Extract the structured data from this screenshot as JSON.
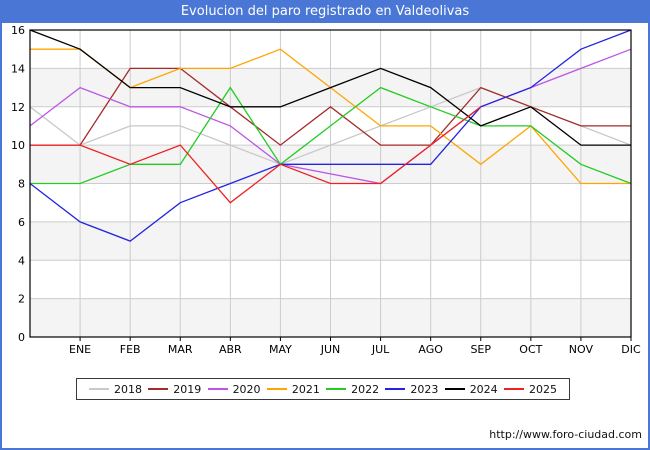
{
  "title": "Evolucion del paro registrado en Valdeolivas",
  "footer": {
    "url": "http://www.foro-ciudad.com"
  },
  "colors": {
    "titlebar_bg": "#4a77d6",
    "titlebar_text": "#ffffff",
    "frame_border": "#4a77d6",
    "gridline": "#cccccc",
    "band_shade": "#f4f4f4",
    "axis": "#000000"
  },
  "chart_data": {
    "type": "line",
    "title": "Evolucion del paro registrado en Valdeolivas",
    "xlabel": "",
    "ylabel": "",
    "ylim": [
      0,
      16
    ],
    "y_ticks": [
      0,
      2,
      4,
      6,
      8,
      10,
      12,
      14,
      16
    ],
    "x_tick_labels": [
      "ENE",
      "FEB",
      "MAR",
      "ABR",
      "MAY",
      "JUN",
      "JUL",
      "AGO",
      "SEP",
      "OCT",
      "NOV",
      "DIC"
    ],
    "x_note": "Each series has 13 points: first point sits on the left axis (before ENE), then one vertex per month gridline ENE..DIC. Series 2025 ends at SEP.",
    "grid": true,
    "legend_position": "bottom",
    "series": [
      {
        "name": "2018",
        "color": "#c9c9c9",
        "values": [
          12,
          10,
          11,
          11,
          10,
          9,
          10,
          11,
          12,
          13,
          12,
          11,
          10
        ]
      },
      {
        "name": "2019",
        "color": "#a52a2a",
        "values": [
          10,
          10,
          14,
          14,
          12,
          10,
          12,
          10,
          10,
          13,
          12,
          11,
          11
        ]
      },
      {
        "name": "2020",
        "color": "#bb55e6",
        "values": [
          11,
          13,
          12,
          12,
          11,
          9,
          8.5,
          8,
          10,
          12,
          13,
          14,
          15
        ]
      },
      {
        "name": "2021",
        "color": "#ffa500",
        "values": [
          15,
          15,
          13,
          14,
          14,
          15,
          13,
          11,
          11,
          9,
          11,
          8,
          8
        ]
      },
      {
        "name": "2022",
        "color": "#22cc22",
        "values": [
          8,
          8,
          9,
          9,
          13,
          9,
          11,
          13,
          12,
          11,
          11,
          9,
          8
        ]
      },
      {
        "name": "2023",
        "color": "#2424e0",
        "values": [
          8,
          6,
          5,
          7,
          8,
          9,
          9,
          9,
          9,
          12,
          13,
          15,
          16
        ]
      },
      {
        "name": "2024",
        "color": "#000000",
        "values": [
          16,
          15,
          13,
          13,
          12,
          12,
          13,
          14,
          13,
          11,
          12,
          10,
          10
        ]
      },
      {
        "name": "2025",
        "color": "#ee2222",
        "values": [
          10,
          10,
          9,
          10,
          7,
          9,
          8,
          8,
          10,
          12
        ]
      }
    ]
  }
}
